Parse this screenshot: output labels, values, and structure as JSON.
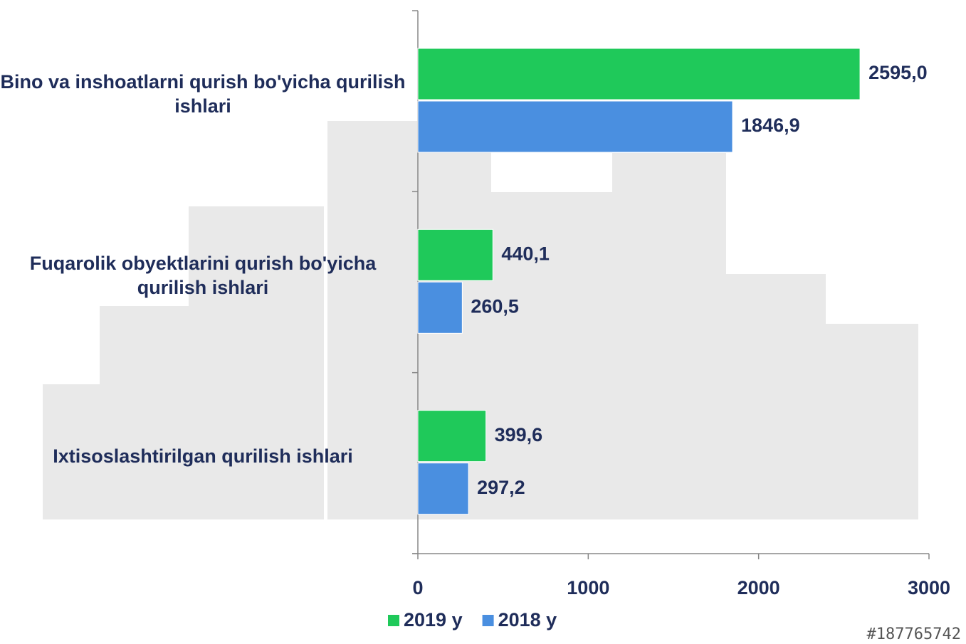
{
  "chart_data": {
    "type": "hbar",
    "categories": [
      "Bino va inshoatlarni qurish bo'yicha qurilish ishlari",
      "Fuqarolik obyektlarini qurish bo'yicha qurilish ishlari",
      "Ixtisoslashtirilgan qurilish ishlari"
    ],
    "series": [
      {
        "name": "2019 y",
        "color": "#1fc95a",
        "values": [
          2595.0,
          440.1,
          399.6
        ],
        "value_labels": [
          "2595,0",
          "440,1",
          "399,6"
        ]
      },
      {
        "name": "2018 y",
        "color": "#4a8fe0",
        "values": [
          1846.9,
          260.5,
          297.2
        ],
        "value_labels": [
          "1846,9",
          "260,5",
          "297,2"
        ]
      }
    ],
    "xlim": [
      0,
      3000
    ],
    "xticks": [
      0,
      1000,
      2000,
      3000
    ],
    "legend": "bottom",
    "watermark": "#187765742"
  }
}
